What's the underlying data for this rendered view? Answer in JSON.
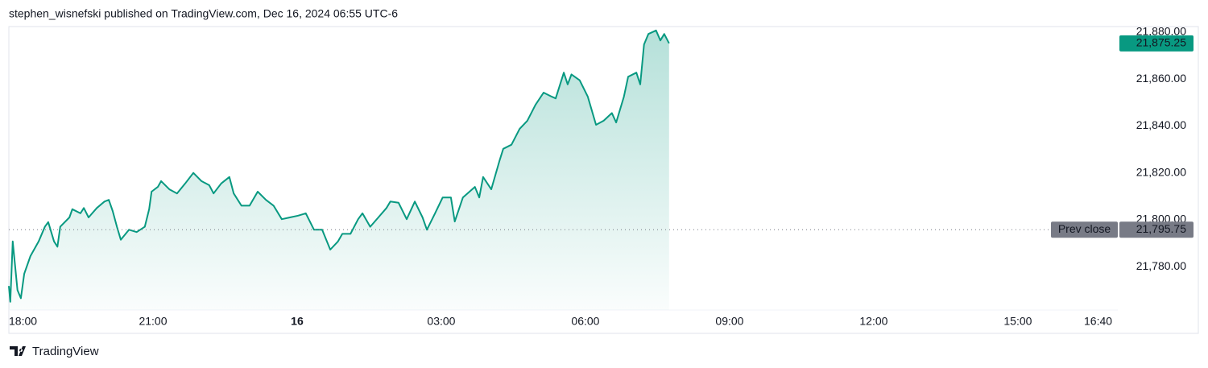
{
  "chart_data": {
    "type": "area",
    "title": "stephen_wisnefski published on TradingView.com, Dec 16, 2024 06:55 UTC-6",
    "brand": "TradingView",
    "color": "#089981",
    "grid": false,
    "x": [
      0.0,
      0.03,
      0.08,
      0.18,
      0.25,
      0.32,
      0.45,
      0.62,
      0.75,
      0.82,
      0.94,
      1.01,
      1.07,
      1.26,
      1.32,
      1.49,
      1.56,
      1.66,
      1.83,
      1.99,
      2.08,
      2.16,
      2.25,
      2.33,
      2.5,
      2.66,
      2.83,
      2.92,
      2.97,
      3.1,
      3.17,
      3.34,
      3.5,
      3.67,
      3.84,
      4.01,
      4.17,
      4.26,
      4.42,
      4.59,
      4.68,
      4.84,
      5.01,
      5.18,
      5.35,
      5.51,
      5.68,
      5.85,
      6.02,
      6.18,
      6.35,
      6.52,
      6.69,
      6.85,
      6.94,
      7.11,
      7.27,
      7.36,
      7.52,
      7.69,
      7.86,
      7.94,
      8.11,
      8.28,
      8.45,
      8.61,
      8.7,
      8.87,
      9.03,
      9.2,
      9.28,
      9.45,
      9.7,
      9.79,
      9.87,
      10.04,
      10.21,
      10.29,
      10.46,
      10.63,
      10.79,
      10.96,
      11.13,
      11.3,
      11.38,
      11.55,
      11.63,
      11.71,
      11.88,
      12.05,
      12.22,
      12.38,
      12.55,
      12.64,
      12.8,
      12.89,
      13.06,
      13.14,
      13.22,
      13.31,
      13.47,
      13.56,
      13.64,
      13.74
    ],
    "values": [
      21771.75,
      21765,
      21790.75,
      21770,
      21766.5,
      21777,
      21784.5,
      21790.75,
      21797,
      21799,
      21790.75,
      21788.5,
      21797,
      21801,
      21804.5,
      21802.75,
      21805,
      21801,
      21805,
      21807.75,
      21808.5,
      21803.75,
      21797,
      21791.5,
      21795.75,
      21794.75,
      21797,
      21804.5,
      21812,
      21814,
      21816.5,
      21813,
      21811.25,
      21815.5,
      21820,
      21816.5,
      21814.75,
      21811.25,
      21815.5,
      21818.25,
      21811.25,
      21806,
      21806,
      21812,
      21808.5,
      21806,
      21800.25,
      21801,
      21801.75,
      21802.75,
      21795.75,
      21795.75,
      21787.25,
      21790.75,
      21794,
      21794,
      21800.25,
      21802.75,
      21797,
      21801,
      21805,
      21807.75,
      21807.25,
      21800.25,
      21807.75,
      21801,
      21795.75,
      21802.75,
      21809.5,
      21809.5,
      21799.25,
      21809.5,
      21814,
      21809.5,
      21818.25,
      21813,
      21825,
      21830.25,
      21832,
      21838.75,
      21842.25,
      21849,
      21854.25,
      21852.5,
      21851.75,
      21862.75,
      21857.75,
      21862,
      21859.5,
      21852.5,
      21840.5,
      21842.25,
      21845.5,
      21841.5,
      21852.5,
      21861,
      21862.75,
      21857.75,
      21874.75,
      21879.25,
      21880.75,
      21876.5,
      21879.25,
      21875.25
    ],
    "xlim": [
      0,
      23.08
    ],
    "xticks": [
      {
        "value": 0,
        "label": "18:00"
      },
      {
        "value": 3,
        "label": "21:00"
      },
      {
        "value": 6,
        "label": "16"
      },
      {
        "value": 9,
        "label": "03:00"
      },
      {
        "value": 12,
        "label": "06:00"
      },
      {
        "value": 15,
        "label": "09:00"
      },
      {
        "value": 18,
        "label": "12:00"
      },
      {
        "value": 21,
        "label": "15:00"
      },
      {
        "value": 22.67,
        "label": "16:40"
      }
    ],
    "ylim": [
      21761.5,
      21882.4
    ],
    "yticks": [
      {
        "value": 21780,
        "label": "21,780.00"
      },
      {
        "value": 21800,
        "label": "21,800.00"
      },
      {
        "value": 21820,
        "label": "21,820.00"
      },
      {
        "value": 21840,
        "label": "21,840.00"
      },
      {
        "value": 21860,
        "label": "21,860.00"
      },
      {
        "value": 21880,
        "label": "21,880.00"
      }
    ],
    "last_price": {
      "value": 21875.25,
      "label": "21,875.25"
    },
    "prev_close": {
      "name": "Prev close",
      "value": 21795.75,
      "label": "21,795.75"
    }
  }
}
